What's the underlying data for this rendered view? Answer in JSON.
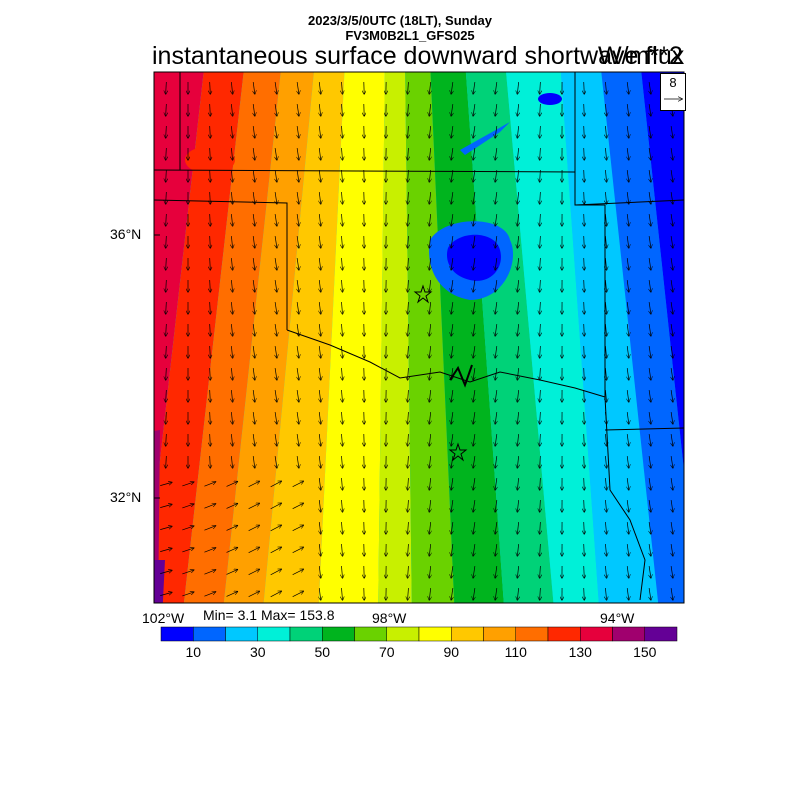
{
  "header": {
    "line1": "2023/3/5/0UTC (18LT), Sunday",
    "line2": "FV3M0B2L1_GFS025"
  },
  "title": "instantaneous surface downward shortwave flux",
  "units": "W/m**2",
  "stats": "Min= 3.1 Max= 153.8",
  "vector_reference": {
    "label": "8"
  },
  "map": {
    "lat_labels": [
      "36°N",
      "32°N"
    ],
    "lon_labels": [
      "102°W",
      "98°W",
      "94°W"
    ],
    "markers": [
      "star-1",
      "star-2"
    ]
  },
  "colorbar": {
    "colors": [
      "#0000ff",
      "#0066ff",
      "#00c8ff",
      "#00f0d8",
      "#00d278",
      "#00b41e",
      "#6ad200",
      "#c8f000",
      "#ffff00",
      "#ffc800",
      "#ffa000",
      "#ff6e00",
      "#ff2800",
      "#e6003c",
      "#a0006e",
      "#640096"
    ],
    "labels": [
      "10",
      "30",
      "50",
      "70",
      "90",
      "110",
      "130",
      "150"
    ]
  }
}
